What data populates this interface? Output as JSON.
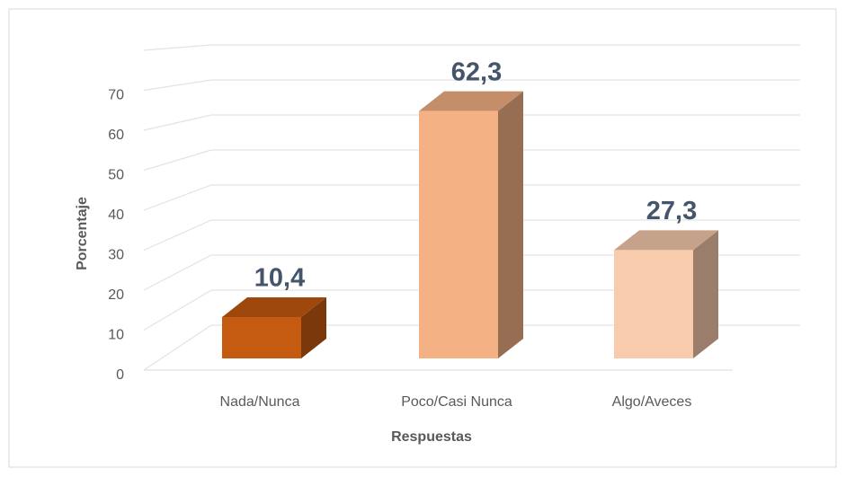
{
  "chart_data": {
    "type": "bar3d",
    "categories": [
      "Nada/Nunca",
      "Poco/Casi Nunca",
      "Algo/Aveces"
    ],
    "values": [
      10.4,
      62.3,
      27.3
    ],
    "value_labels": [
      "10,4",
      "62,3",
      "27,3"
    ],
    "colors": [
      "#c55a11",
      "#f4b183",
      "#f8cbad"
    ],
    "ylim": [
      0,
      80
    ],
    "yticks": [
      0,
      10,
      20,
      30,
      40,
      50,
      60,
      70
    ],
    "grid": true,
    "xlabel": "Respuestas",
    "ylabel": "Porcentaje"
  }
}
